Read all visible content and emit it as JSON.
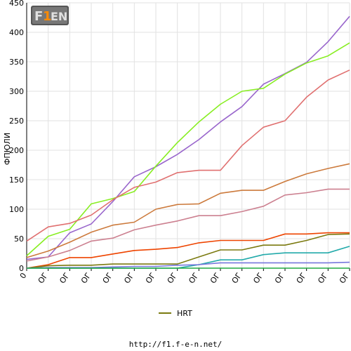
{
  "logo": {
    "text": "F1EN"
  },
  "footer": {
    "url": "http://f1.f-e-n.net/"
  },
  "legend": {
    "items": [
      {
        "label": "HRT",
        "color": "#7b7a10"
      }
    ]
  },
  "chart_data": {
    "type": "line",
    "title": "",
    "xlabel": "",
    "ylabel": "ФПЮЛИ",
    "ylim": [
      0,
      450
    ],
    "yticks": [
      0,
      50,
      100,
      150,
      200,
      250,
      300,
      350,
      400,
      450
    ],
    "categories": [
      "0",
      "ОГ",
      "ОГ",
      "ОГ",
      "ОГ",
      "ОГ",
      "ОГ",
      "ОГ",
      "ОГ",
      "ОГ",
      "ОГ",
      "ОГ",
      "ОГ",
      "ОГ",
      "ОГ",
      "ОГ"
    ],
    "grid": true,
    "legend_position": "bottom-center",
    "series": [
      {
        "color": "#9966cc",
        "values": [
          15,
          19,
          60,
          75,
          113,
          155,
          172,
          193,
          218,
          248,
          274,
          312,
          330,
          349,
          384,
          427
        ]
      },
      {
        "color": "#88ee22",
        "values": [
          21,
          54,
          66,
          109,
          118,
          130,
          173,
          213,
          248,
          278,
          300,
          305,
          329,
          348,
          360,
          382
        ]
      },
      {
        "color": "#e07070",
        "values": [
          46,
          70,
          76,
          90,
          116,
          137,
          146,
          162,
          166,
          166,
          208,
          239,
          250,
          290,
          319,
          336
        ]
      },
      {
        "color": "#cc7a3c",
        "values": [
          18,
          29,
          44,
          61,
          73,
          78,
          100,
          108,
          109,
          127,
          132,
          132,
          147,
          160,
          169,
          177
        ]
      },
      {
        "color": "#cc8090",
        "values": [
          12,
          19,
          30,
          46,
          51,
          65,
          73,
          80,
          89,
          89,
          96,
          105,
          124,
          128,
          134,
          134
        ]
      },
      {
        "color": "#ee4400",
        "values": [
          0,
          6,
          18,
          18,
          24,
          30,
          32,
          35,
          43,
          47,
          47,
          47,
          58,
          58,
          60,
          60
        ]
      },
      {
        "name": "HRT",
        "color": "#7b7a10",
        "values": [
          0,
          4,
          5,
          5,
          7,
          7,
          7,
          7,
          19,
          31,
          31,
          39,
          39,
          47,
          57,
          58
        ]
      },
      {
        "color": "#22aaaa",
        "values": [
          0,
          0,
          0,
          0,
          0,
          0,
          0,
          0,
          6,
          14,
          14,
          23,
          26,
          26,
          26,
          37
        ]
      },
      {
        "color": "#7777dd",
        "values": [
          0,
          1,
          1,
          1,
          2,
          3,
          3,
          5,
          6,
          9,
          9,
          9,
          9,
          9,
          9,
          10
        ]
      },
      {
        "color": "#22aa44",
        "values": [
          0,
          0,
          0,
          0,
          0,
          0,
          0,
          0,
          0,
          0,
          0,
          0,
          0,
          0,
          0,
          0
        ]
      }
    ]
  }
}
